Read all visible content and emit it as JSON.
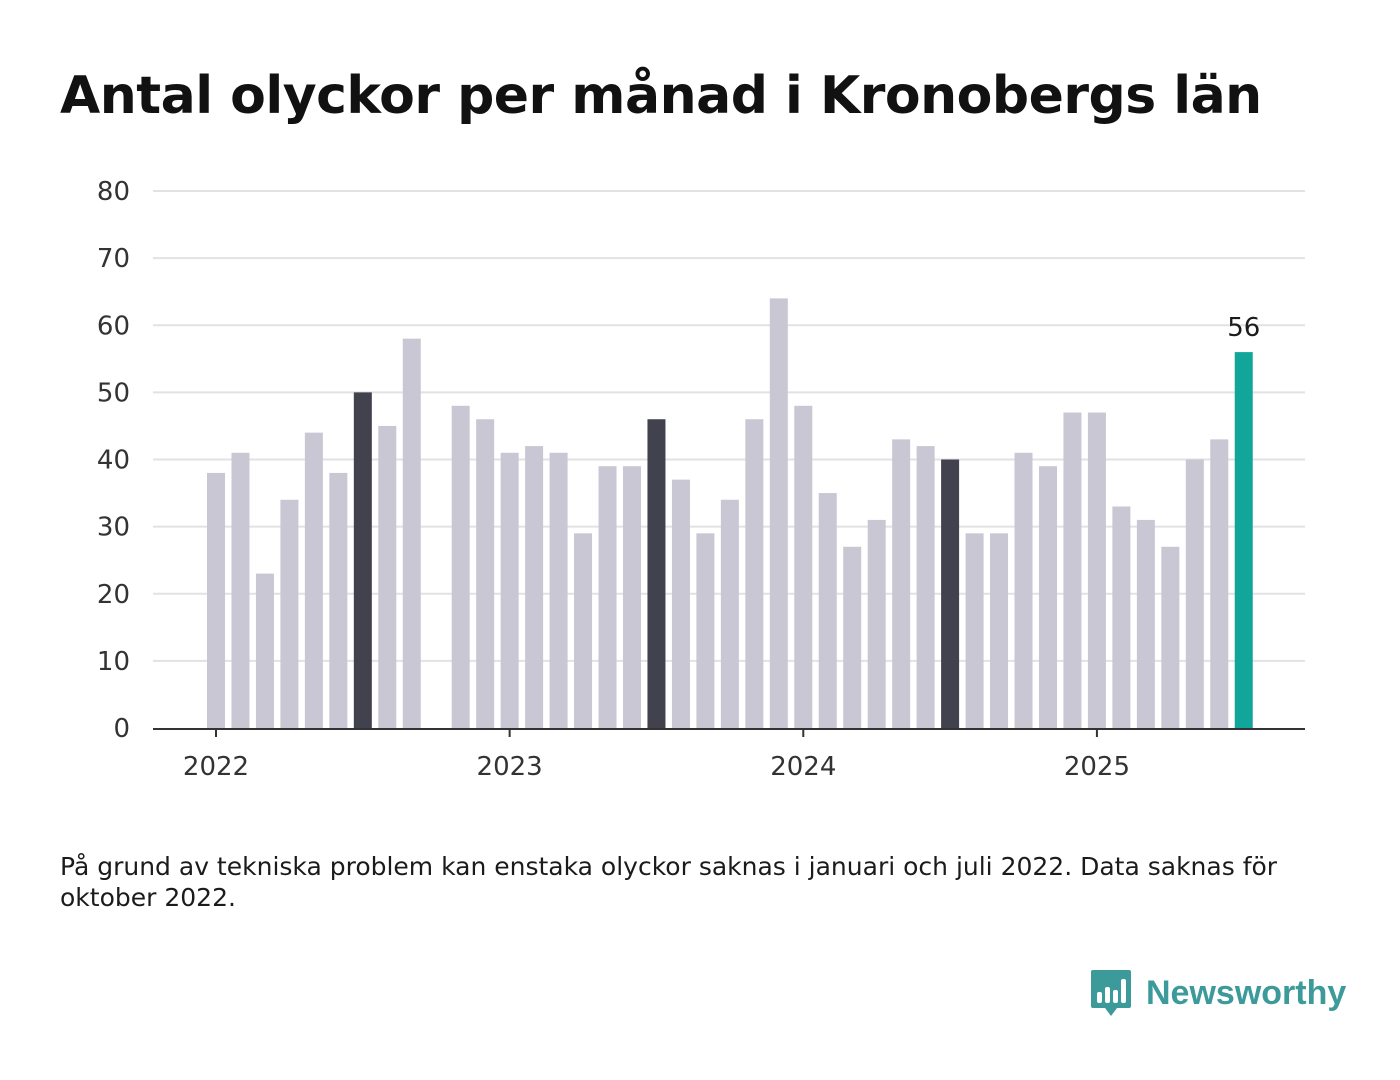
{
  "title": "Antal olyckor per månad i Kronobergs län",
  "footnote": "På grund av tekniska problem kan enstaka olyckor saknas i januari och juli 2022. Data saknas för oktober 2022.",
  "brand": {
    "name": "Newsworthy",
    "icon": "newsworthy-bar-chart-logo-icon",
    "color": "#3d9a9a"
  },
  "chart_data": {
    "type": "bar",
    "title": "Antal olyckor per månad i Kronobergs län",
    "xlabel": "",
    "ylabel": "",
    "ylim": [
      0,
      80
    ],
    "yticks": [
      0,
      10,
      20,
      30,
      40,
      50,
      60,
      70,
      80
    ],
    "xtick_labels": [
      "2022",
      "2023",
      "2024",
      "2025"
    ],
    "grid": true,
    "legend": "none",
    "colors": {
      "default": "#c8c7d3",
      "july": "#42414e",
      "latest": "#12a59a",
      "grid": "#e2e2e2",
      "axis": "#333333"
    },
    "categories": [
      "2022-01",
      "2022-02",
      "2022-03",
      "2022-04",
      "2022-05",
      "2022-06",
      "2022-07",
      "2022-08",
      "2022-09",
      "2022-10",
      "2022-11",
      "2022-12",
      "2023-01",
      "2023-02",
      "2023-03",
      "2023-04",
      "2023-05",
      "2023-06",
      "2023-07",
      "2023-08",
      "2023-09",
      "2023-10",
      "2023-11",
      "2023-12",
      "2024-01",
      "2024-02",
      "2024-03",
      "2024-04",
      "2024-05",
      "2024-06",
      "2024-07",
      "2024-08",
      "2024-09",
      "2024-10",
      "2024-11",
      "2024-12",
      "2025-01",
      "2025-02",
      "2025-03",
      "2025-04",
      "2025-05",
      "2025-06",
      "2025-07"
    ],
    "values": [
      38,
      41,
      23,
      34,
      44,
      38,
      50,
      45,
      58,
      null,
      48,
      46,
      41,
      42,
      41,
      29,
      39,
      39,
      46,
      37,
      29,
      34,
      46,
      64,
      48,
      35,
      27,
      31,
      43,
      42,
      40,
      29,
      29,
      41,
      39,
      47,
      47,
      33,
      31,
      27,
      40,
      43,
      56
    ],
    "highlight": {
      "july_indices": [
        6,
        18,
        30
      ],
      "latest_index": 42
    },
    "data_labels": [
      {
        "category": "2025-07",
        "value": "56"
      }
    ]
  }
}
